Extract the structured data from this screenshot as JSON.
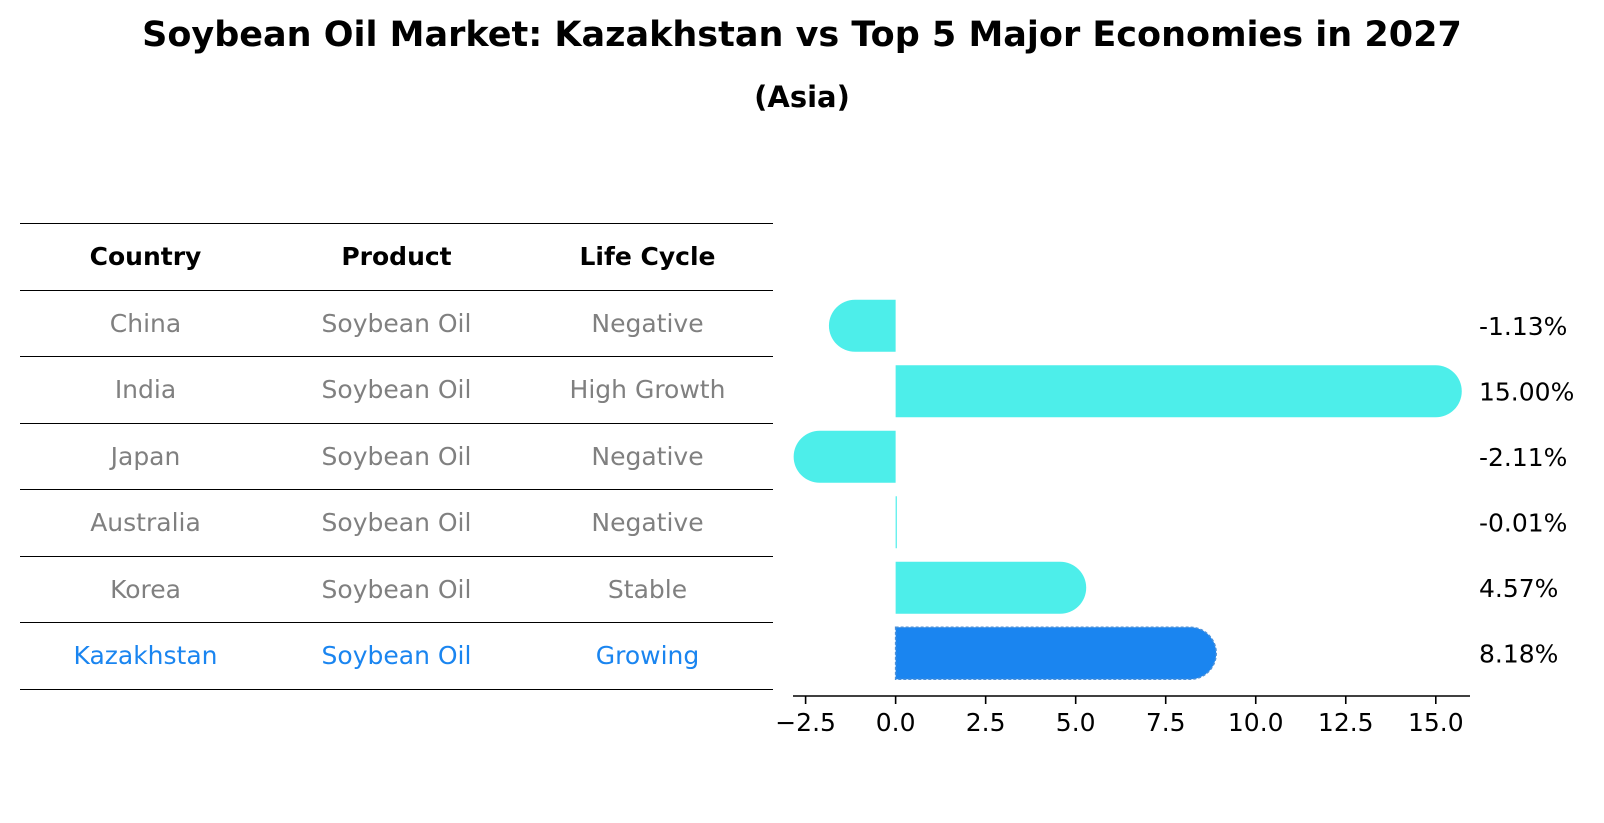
{
  "title": "Soybean Oil Market: Kazakhstan vs Top 5 Major Economies in 2027",
  "subtitle": "(Asia)",
  "table": {
    "headers": [
      "Country",
      "Product",
      "Life Cycle"
    ],
    "rows": [
      {
        "country": "China",
        "product": "Soybean Oil",
        "life_cycle": "Negative",
        "highlight": false
      },
      {
        "country": "India",
        "product": "Soybean Oil",
        "life_cycle": "High Growth",
        "highlight": false
      },
      {
        "country": "Japan",
        "product": "Soybean Oil",
        "life_cycle": "Negative",
        "highlight": false
      },
      {
        "country": "Australia",
        "product": "Soybean Oil",
        "life_cycle": "Negative",
        "highlight": false
      },
      {
        "country": "Korea",
        "product": "Soybean Oil",
        "life_cycle": "Stable",
        "highlight": false
      },
      {
        "country": "Kazakhstan",
        "product": "Soybean Oil",
        "life_cycle": "Growing",
        "highlight": true
      }
    ]
  },
  "colors": {
    "bar_default": "#4deeea",
    "bar_highlight": "#1a85f0",
    "text_muted": "#808080",
    "text_highlight": "#1a85f0",
    "axis": "#000000"
  },
  "chart_data": {
    "type": "bar",
    "orientation": "horizontal",
    "categories": [
      "China",
      "India",
      "Japan",
      "Australia",
      "Korea",
      "Kazakhstan"
    ],
    "values": [
      -1.13,
      15.0,
      -2.11,
      -0.01,
      4.57,
      8.18
    ],
    "value_labels": [
      "-1.13%",
      "15.00%",
      "-2.11%",
      "-0.01%",
      "4.57%",
      "8.18%"
    ],
    "highlight_index": 5,
    "xlim": [
      -2.85,
      15.95
    ],
    "xticks": [
      -2.5,
      0.0,
      2.5,
      5.0,
      7.5,
      10.0,
      12.5,
      15.0
    ],
    "xtick_labels": [
      "−2.5",
      "0.0",
      "2.5",
      "5.0",
      "7.5",
      "10.0",
      "12.5",
      "15.0"
    ],
    "xlabel": "",
    "ylabel": "",
    "grid": false
  }
}
